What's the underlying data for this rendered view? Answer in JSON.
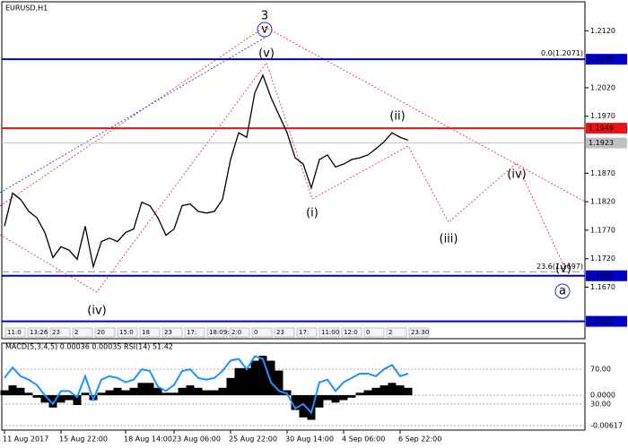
{
  "chart_data": [
    {
      "type": "line",
      "title": "EURUSD,H1",
      "categories": [
        "11 Aug 2017",
        null,
        null,
        null,
        null,
        null,
        null,
        "15 Aug 22:00",
        null,
        null,
        null,
        null,
        null,
        null,
        null,
        "18 Aug 14:00",
        null,
        null,
        null,
        null,
        null,
        "23 Aug 06:00",
        null,
        null,
        null,
        null,
        null,
        null,
        "25 Aug 22:00",
        null,
        null,
        null,
        null,
        null,
        null,
        "30 Aug 14:00",
        null,
        null,
        null,
        null,
        null,
        null,
        "4 Sep 06:00",
        null,
        null,
        null,
        null,
        null,
        null,
        "6 Sep 22:00",
        null
      ],
      "values": [
        1.1777,
        1.1835,
        1.1824,
        1.1803,
        1.1792,
        1.1766,
        1.1722,
        1.1741,
        1.1735,
        1.1719,
        1.1777,
        1.1706,
        1.175,
        1.1756,
        1.175,
        1.1766,
        1.1772,
        1.1819,
        1.1813,
        1.1792,
        1.1761,
        1.1772,
        1.1813,
        1.1816,
        1.1803,
        1.18,
        1.1803,
        1.1824,
        1.1894,
        1.1941,
        1.1933,
        1.2011,
        1.2042,
        1.2003,
        1.1972,
        1.1941,
        1.1897,
        1.1886,
        1.1844,
        1.1894,
        1.1902,
        1.1881,
        1.1886,
        1.1894,
        1.1897,
        1.1902,
        1.1913,
        1.1925,
        1.1941,
        1.1933,
        1.1928
      ],
      "color": "#000000",
      "ylim": [
        1.16,
        1.2174
      ],
      "yticks": [
        {
          "value": 1.212,
          "label": "1.2120"
        },
        {
          "value": 1.202,
          "label": "1.2020"
        },
        {
          "value": 1.197,
          "label": "1.1970"
        },
        {
          "value": 1.187,
          "label": "1.1870"
        },
        {
          "value": 1.182,
          "label": "1.1820"
        },
        {
          "value": 1.177,
          "label": "1.1770"
        },
        {
          "value": 1.172,
          "label": "1.1720"
        },
        {
          "value": 1.167,
          "label": "1.1670"
        }
      ],
      "levels": [
        {
          "value": 1.207,
          "label": "1.2070",
          "color": "#0000cc"
        },
        {
          "value": 1.1949,
          "label": "1.1949",
          "color": "#ee1111"
        },
        {
          "value": 1.1923,
          "label": "1.1923",
          "color": "#c0c0c0"
        },
        {
          "value": 1.169,
          "label": "1.1690",
          "color": "#0000cc"
        },
        {
          "value": 1.161,
          "label": "1.1610",
          "color": "#0000cc"
        }
      ],
      "fib": [
        {
          "value": 1.2071,
          "label": "0.0(1.2071)"
        },
        {
          "value": 1.1697,
          "label": "23.6(1.1697)"
        }
      ],
      "annotations": [
        "3",
        "v",
        "(v)",
        "(i)",
        "(ii)",
        "(iii)",
        "(iv)",
        "(v)",
        "a",
        "(iv)"
      ],
      "session_labels": [
        "11:0",
        "13:26",
        "23",
        "2",
        "20",
        "15:0",
        "18",
        "23",
        "17:",
        "18:09:45",
        "2:0",
        "0",
        "23",
        "17:",
        "11:00",
        "12:0",
        "0",
        "2",
        "23:30"
      ]
    },
    {
      "type": "indicator",
      "title": "MACD(5,3,4,5) 0.00036 0.00035 RSI(14) 51.42",
      "macd": [
        0.001,
        0.002,
        0.0015,
        0.0005,
        -0.0005,
        -0.0015,
        -0.0025,
        -0.0015,
        -0.001,
        -0.002,
        0.0005,
        -0.001,
        0.0005,
        0.001,
        0.0015,
        0.001,
        0.0015,
        0.0025,
        0.0025,
        0.0015,
        0.0005,
        0.0005,
        0.0015,
        0.002,
        0.0015,
        0.001,
        0.001,
        0.0015,
        0.0035,
        0.0055,
        0.0055,
        0.007,
        0.008,
        0.007,
        0.005,
        0.001,
        -0.003,
        -0.0045,
        -0.005,
        -0.0025,
        -0.001,
        -0.0015,
        -0.001,
        -0.0005,
        0.0005,
        0.001,
        0.0015,
        0.002,
        0.0025,
        0.002,
        0.0015
      ],
      "rsi": [
        60,
        72,
        62,
        58,
        52,
        40,
        30,
        45,
        45,
        38,
        62,
        35,
        58,
        62,
        60,
        55,
        58,
        70,
        68,
        50,
        45,
        52,
        68,
        70,
        60,
        58,
        60,
        68,
        80,
        82,
        70,
        85,
        82,
        55,
        45,
        42,
        25,
        30,
        20,
        55,
        58,
        45,
        55,
        60,
        65,
        65,
        62,
        70,
        75,
        62,
        65
      ],
      "macd_color": "#000000",
      "rsi_color": "#1e90ff",
      "ylim": [
        -0.0069,
        0.0102
      ],
      "yticks": [
        {
          "value": 0,
          "label": "0.0000"
        },
        {
          "value": -0.00617,
          "label": "-0.00617"
        }
      ],
      "y2lim": [
        1,
        98
      ],
      "y2ticks": [
        {
          "value": 70,
          "label": "70.00"
        },
        {
          "value": 30,
          "label": "30.00"
        }
      ]
    }
  ]
}
